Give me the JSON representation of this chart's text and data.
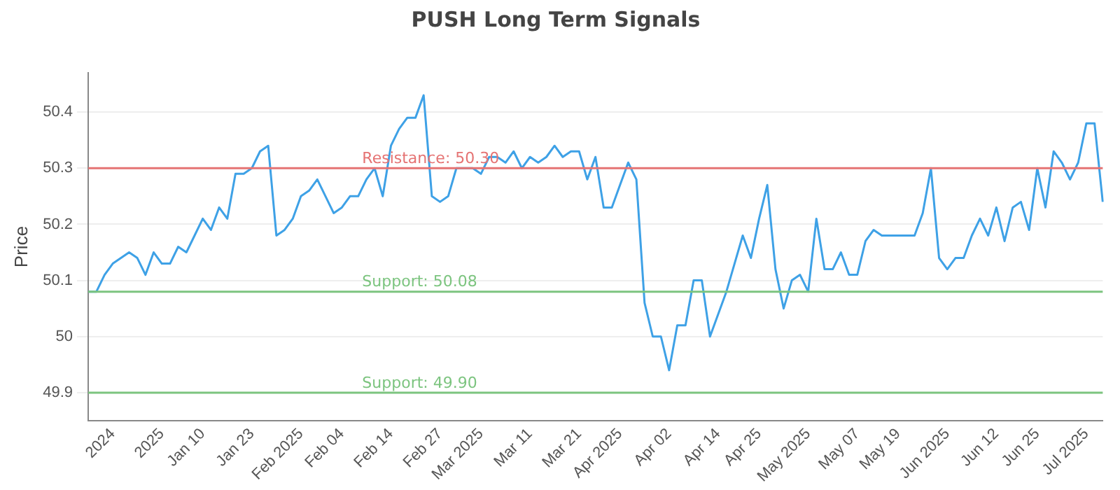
{
  "chart_data": {
    "type": "line",
    "title": "PUSH Long Term Signals",
    "ylabel": "Price",
    "categories": [
      null,
      null,
      null,
      "2024",
      null,
      null,
      null,
      null,
      null,
      "2025",
      null,
      null,
      null,
      null,
      "Jan 10",
      null,
      null,
      null,
      null,
      null,
      "Jan 23",
      null,
      null,
      null,
      null,
      null,
      "Feb 2025",
      null,
      null,
      null,
      null,
      "Feb 04",
      null,
      null,
      null,
      null,
      null,
      "Feb 14",
      null,
      null,
      null,
      null,
      null,
      "Feb 27",
      null,
      null,
      null,
      null,
      "Mar 2025",
      null,
      null,
      null,
      null,
      null,
      "Mar 11",
      null,
      null,
      null,
      null,
      null,
      "Mar 21",
      null,
      null,
      null,
      null,
      "Apr 2025",
      null,
      null,
      null,
      null,
      null,
      "Apr 02",
      null,
      null,
      null,
      null,
      null,
      "Apr 14",
      null,
      null,
      null,
      null,
      "Apr 25",
      null,
      null,
      null,
      null,
      null,
      "May 2025",
      null,
      null,
      null,
      null,
      null,
      "May 07",
      null,
      null,
      null,
      null,
      "May 19",
      null,
      null,
      null,
      null,
      null,
      "Jun 2025",
      null,
      null,
      null,
      null,
      null,
      "Jun 12",
      null,
      null,
      null,
      null,
      "Jun 25",
      null,
      null,
      null,
      null,
      null,
      "Jul 2025",
      null,
      null
    ],
    "series": [
      {
        "color": "#3ea1e6",
        "values": [
          50.08,
          50.08,
          50.11,
          50.13,
          50.14,
          50.15,
          50.14,
          50.11,
          50.15,
          50.13,
          50.13,
          50.16,
          50.15,
          50.18,
          50.21,
          50.19,
          50.23,
          50.21,
          50.29,
          50.29,
          50.3,
          50.33,
          50.34,
          50.18,
          50.19,
          50.21,
          50.25,
          50.26,
          50.28,
          50.25,
          50.22,
          50.23,
          50.25,
          50.25,
          50.28,
          50.3,
          50.25,
          50.34,
          50.37,
          50.39,
          50.39,
          50.43,
          50.25,
          50.24,
          50.25,
          50.3,
          50.3,
          50.3,
          50.29,
          50.32,
          50.32,
          50.31,
          50.33,
          50.3,
          50.32,
          50.31,
          50.32,
          50.34,
          50.32,
          50.33,
          50.33,
          50.28,
          50.32,
          50.23,
          50.23,
          50.27,
          50.31,
          50.28,
          50.06,
          50.0,
          50.0,
          49.94,
          50.02,
          50.02,
          50.1,
          50.1,
          50.0,
          50.04,
          50.08,
          50.13,
          50.18,
          50.14,
          50.21,
          50.27,
          50.12,
          50.05,
          50.1,
          50.11,
          50.08,
          50.21,
          50.12,
          50.12,
          50.15,
          50.11,
          50.11,
          50.17,
          50.19,
          50.18,
          50.18,
          50.18,
          50.18,
          50.18,
          50.22,
          50.3,
          50.14,
          50.12,
          50.14,
          50.14,
          50.18,
          50.21,
          50.18,
          50.23,
          50.17,
          50.23,
          50.24,
          50.19,
          50.3,
          50.23,
          50.33,
          50.31,
          50.28,
          50.31,
          50.38,
          50.38,
          50.24
        ]
      }
    ],
    "ylim": [
      49.85,
      50.47
    ],
    "yticks": [
      49.9,
      50.0,
      50.1,
      50.2,
      50.3,
      50.4
    ],
    "ref_lines": [
      {
        "axis": "y",
        "value": 50.3,
        "label": "Resistance: 50.30",
        "color": "#e57373"
      },
      {
        "axis": "y",
        "value": 50.08,
        "label": "Support: 50.08",
        "color": "#7cc47f"
      },
      {
        "axis": "y",
        "value": 49.9,
        "label": "Support: 49.90",
        "color": "#7cc47f"
      }
    ],
    "grid": "y",
    "legend": false,
    "marker": "none",
    "line_style": "solid"
  }
}
